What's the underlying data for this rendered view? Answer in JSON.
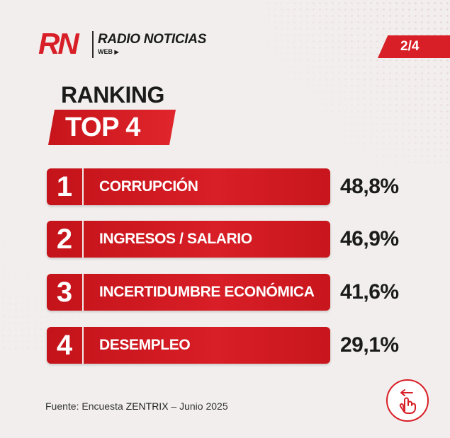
{
  "brand": {
    "mark": "RN",
    "name": "RADIO NOTICIAS",
    "sub": "WEB",
    "accent": "#d81e26"
  },
  "page_indicator": "2/4",
  "heading": {
    "title": "RANKING",
    "badge": "TOP 4"
  },
  "ranking": [
    {
      "rank": "1",
      "label": "CORRUPCIÓN",
      "value": "48,8%"
    },
    {
      "rank": "2",
      "label": "INGRESOS / SALARIO",
      "value": "46,9%"
    },
    {
      "rank": "3",
      "label": "INCERTIDUMBRE ECONÓMICA",
      "value": "41,6%"
    },
    {
      "rank": "4",
      "label": "DESEMPLEO",
      "value": "29,1%"
    }
  ],
  "source": {
    "prefix": "Fuente: Encuesta",
    "company": "ZENTRIX",
    "suffix": "– Junio 2025"
  },
  "swipe_icon": "swipe-hand-icon"
}
